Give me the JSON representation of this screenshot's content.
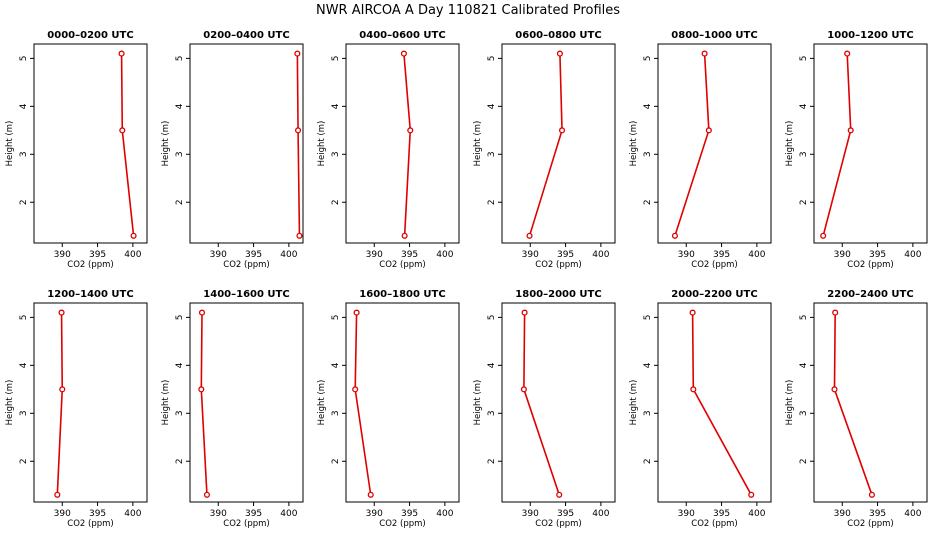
{
  "chart_data": {
    "title": "NWR AIRCOA A  Day 110821  Calibrated Profiles",
    "type": "line",
    "xlabel": "CO2 (ppm)",
    "ylabel": "Height (m)",
    "xlim": [
      386,
      402
    ],
    "ylim": [
      1.15,
      5.3
    ],
    "xticks": [
      390,
      395,
      400
    ],
    "yticks": [
      2,
      3,
      4,
      5
    ],
    "heights": [
      5.1,
      3.5,
      1.3
    ],
    "panels": [
      {
        "title": "0000–0200 UTC",
        "values": [
          398.4,
          398.5,
          400.1
        ]
      },
      {
        "title": "0200–0400 UTC",
        "values": [
          401.2,
          401.3,
          401.5
        ]
      },
      {
        "title": "0400–0600 UTC",
        "values": [
          394.2,
          395.1,
          394.3
        ]
      },
      {
        "title": "0600–0800 UTC",
        "values": [
          394.2,
          394.5,
          389.9
        ]
      },
      {
        "title": "0800–1000 UTC",
        "values": [
          392.6,
          393.2,
          388.4
        ]
      },
      {
        "title": "1000–1200 UTC",
        "values": [
          390.7,
          391.2,
          387.3
        ]
      },
      {
        "title": "1200–1400 UTC",
        "values": [
          389.9,
          390.0,
          389.3
        ]
      },
      {
        "title": "1400–1600 UTC",
        "values": [
          387.7,
          387.6,
          388.4
        ]
      },
      {
        "title": "1600–1800 UTC",
        "values": [
          387.5,
          387.3,
          389.5
        ]
      },
      {
        "title": "1800–2000 UTC",
        "values": [
          389.2,
          389.1,
          394.1
        ]
      },
      {
        "title": "2000–2200 UTC",
        "values": [
          390.9,
          391.0,
          399.2
        ]
      },
      {
        "title": "2200–2400 UTC",
        "values": [
          389.0,
          388.9,
          394.2
        ]
      }
    ]
  }
}
